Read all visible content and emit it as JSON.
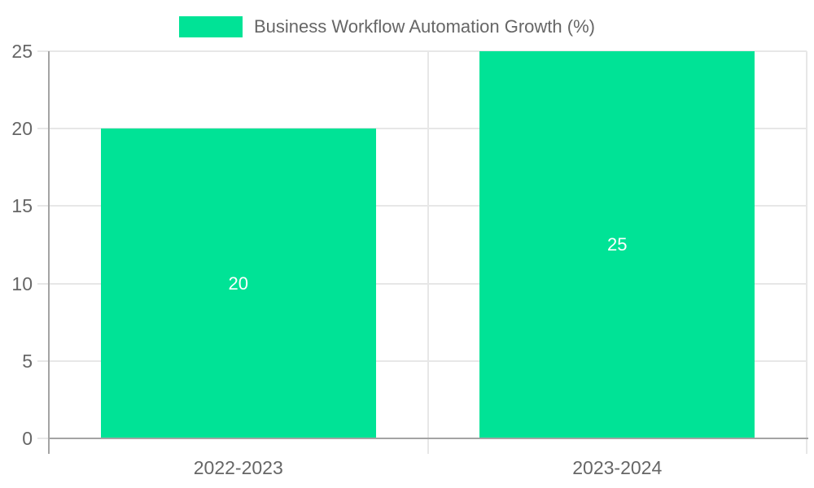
{
  "chart_data": {
    "type": "bar",
    "title": "Business Workflow Automation Growth (%)",
    "categories": [
      "2022-2023",
      "2023-2024"
    ],
    "values": [
      20,
      25
    ],
    "data_labels": [
      "20",
      "25"
    ],
    "ylim": [
      0,
      25
    ],
    "yticks": [
      0,
      5,
      10,
      15,
      20,
      25
    ],
    "ytick_labels": [
      "0",
      "5",
      "10",
      "15",
      "20",
      "25"
    ],
    "xlabel": "",
    "ylabel": "",
    "grid": true,
    "legend_position": "top",
    "colors": {
      "bar": "#00e396",
      "grid": "#e7e7e7",
      "axis": "#a4a4a4",
      "label": "#666666",
      "data_label": "#ffffff",
      "background": "#ffffff"
    }
  }
}
